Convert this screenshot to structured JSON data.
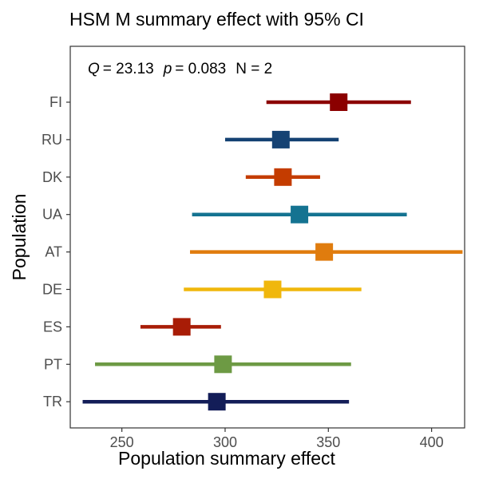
{
  "chart_data": {
    "type": "forest",
    "title": "HSM M summary effect with 95% CI",
    "annotation": {
      "q_symbol": "Q",
      "q_value": "= 23.13",
      "p_symbol": "p",
      "p_value": "= 0.083",
      "n_text": "N = 2"
    },
    "xlabel": "Population summary effect",
    "ylabel": "Population",
    "xlim": [
      225,
      416
    ],
    "xticks": [
      250,
      300,
      350,
      400
    ],
    "grid": false,
    "legend": "none",
    "rows": [
      {
        "label": "FI",
        "estimate": 355,
        "lower": 320,
        "upper": 390,
        "color": "#8b0000"
      },
      {
        "label": "RU",
        "estimate": 327,
        "lower": 300,
        "upper": 355,
        "color": "#154273"
      },
      {
        "label": "DK",
        "estimate": 328,
        "lower": 310,
        "upper": 346,
        "color": "#c43c00"
      },
      {
        "label": "UA",
        "estimate": 336,
        "lower": 284,
        "upper": 388,
        "color": "#147391"
      },
      {
        "label": "AT",
        "estimate": 348,
        "lower": 283,
        "upper": 415,
        "color": "#e07c0e"
      },
      {
        "label": "DE",
        "estimate": 323,
        "lower": 280,
        "upper": 366,
        "color": "#f0b70c"
      },
      {
        "label": "ES",
        "estimate": 279,
        "lower": 259,
        "upper": 298,
        "color": "#a81c06"
      },
      {
        "label": "PT",
        "estimate": 299,
        "lower": 237,
        "upper": 361,
        "color": "#6d9a44"
      },
      {
        "label": "TR",
        "estimate": 296,
        "lower": 231,
        "upper": 360,
        "color": "#131d58"
      }
    ]
  }
}
